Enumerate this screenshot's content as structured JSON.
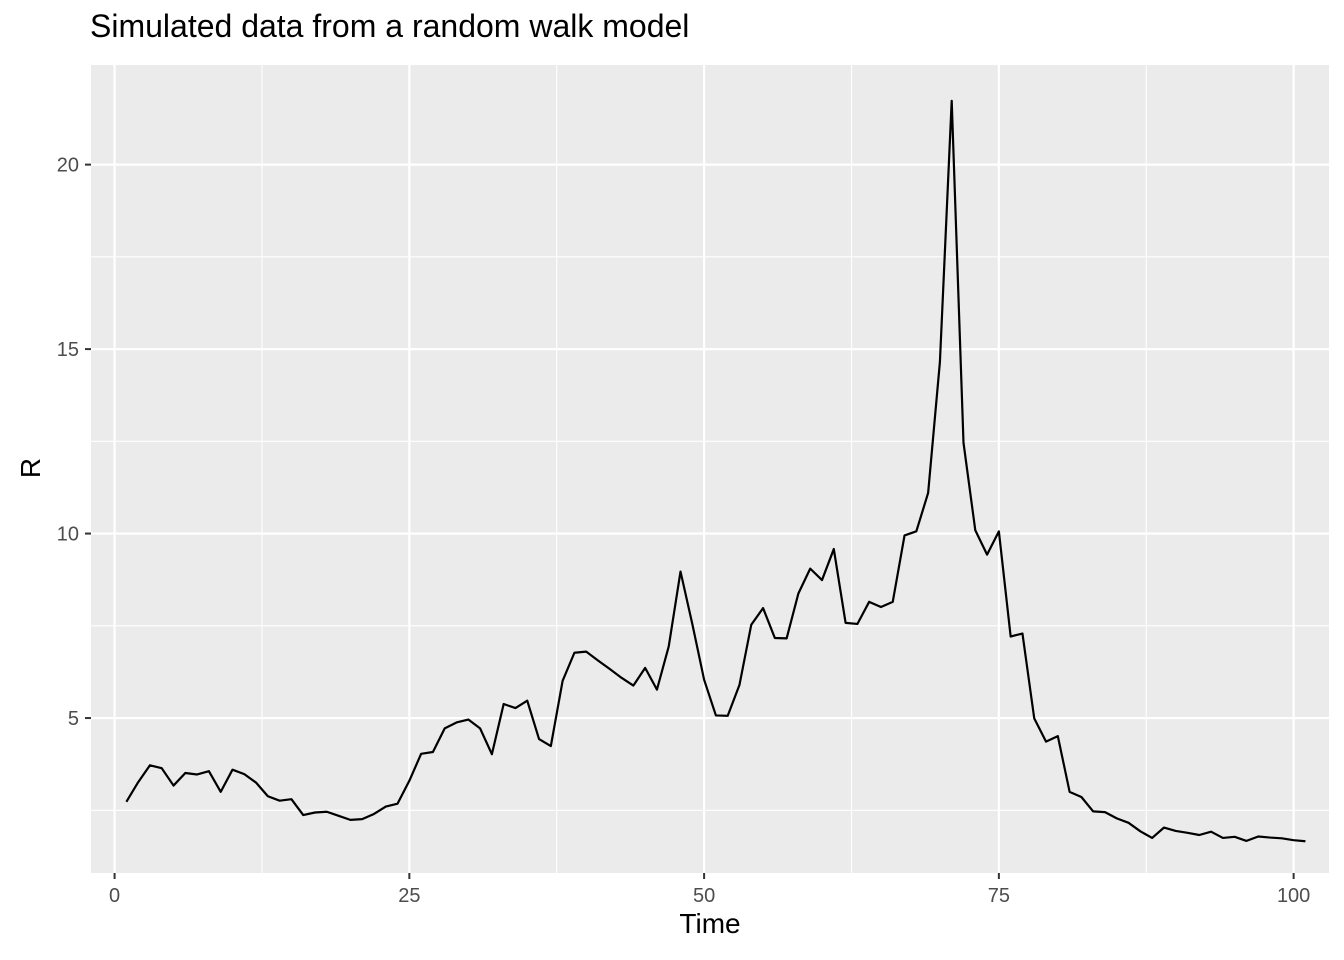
{
  "chart_data": {
    "type": "line",
    "title": "Simulated data from a random walk model",
    "xlabel": "Time",
    "ylabel": "R",
    "xlim": [
      -2,
      103
    ],
    "ylim": [
      0.8,
      22.7
    ],
    "x_ticks": [
      0,
      25,
      50,
      75,
      100
    ],
    "y_ticks": [
      5,
      10,
      15,
      20
    ],
    "x_tick_labels": [
      "0",
      "25",
      "50",
      "75",
      "100"
    ],
    "y_tick_labels": [
      "5",
      "10",
      "15",
      "20"
    ],
    "grid": true,
    "background": "#ebebeb",
    "grid_color": "#ffffff",
    "line_color": "#000000",
    "series": [
      {
        "x": [
          1,
          2,
          3,
          4,
          5,
          6,
          7,
          8,
          9,
          10,
          11,
          12,
          13,
          14,
          15,
          16,
          17,
          18,
          19,
          20,
          21,
          22,
          23,
          24,
          25,
          26,
          27,
          28,
          29,
          30,
          31,
          32,
          33,
          34,
          35,
          36,
          37,
          38,
          39,
          40,
          41,
          42,
          43,
          44,
          45,
          46,
          47,
          48,
          49,
          50,
          51,
          52,
          53,
          54,
          55,
          56,
          57,
          58,
          59,
          60,
          61,
          62,
          63,
          64,
          65,
          66,
          67,
          68,
          69,
          70,
          71,
          72,
          73,
          74,
          75,
          76,
          77,
          78,
          79,
          80,
          81,
          82,
          83,
          84,
          85,
          86,
          87,
          88,
          89,
          90,
          91,
          92,
          93,
          94,
          95,
          96,
          97,
          98,
          99,
          100,
          101
        ],
        "values": [
          2.73,
          3.26,
          3.72,
          3.64,
          3.17,
          3.51,
          3.47,
          3.56,
          3.0,
          3.6,
          3.48,
          3.25,
          2.88,
          2.76,
          2.8,
          2.37,
          2.44,
          2.46,
          2.35,
          2.24,
          2.26,
          2.4,
          2.6,
          2.68,
          3.3,
          4.03,
          4.08,
          4.72,
          4.88,
          4.96,
          4.72,
          4.02,
          5.38,
          5.27,
          5.47,
          4.43,
          4.24,
          6.01,
          6.77,
          6.8,
          6.56,
          6.33,
          6.09,
          5.88,
          6.36,
          5.77,
          6.94,
          8.97,
          7.55,
          6.04,
          5.07,
          5.06,
          5.9,
          7.53,
          7.98,
          7.17,
          7.16,
          8.38,
          9.05,
          8.74,
          9.58,
          7.58,
          7.55,
          8.15,
          8.01,
          8.15,
          9.95,
          10.06,
          11.1,
          14.65,
          21.73,
          12.46,
          10.09,
          9.43,
          10.06,
          7.21,
          7.29,
          4.99,
          4.36,
          4.51,
          3.0,
          2.86,
          2.47,
          2.45,
          2.28,
          2.16,
          1.93,
          1.75,
          2.03,
          1.94,
          1.89,
          1.83,
          1.92,
          1.75,
          1.78,
          1.67,
          1.79,
          1.76,
          1.74,
          1.69,
          1.66
        ]
      }
    ]
  }
}
